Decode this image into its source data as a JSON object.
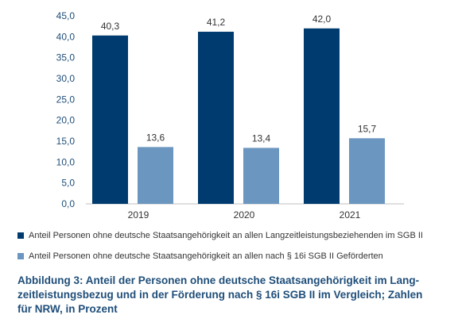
{
  "chart_data": {
    "type": "bar",
    "categories": [
      "2019",
      "2020",
      "2021"
    ],
    "series": [
      {
        "name": "Anteil Personen ohne deutsche Staatsangehörigkeit an allen Langzeitleistungsbeziehenden im SGB II",
        "values": [
          40.3,
          41.2,
          42.0
        ],
        "labels": [
          "40,3",
          "41,2",
          "42,0"
        ],
        "color": "#003b6f"
      },
      {
        "name": "Anteil Personen ohne deutsche Staatsangehörigkeit an allen nach § 16i SGB II Geförderten",
        "values": [
          13.6,
          13.4,
          15.7
        ],
        "labels": [
          "13,6",
          "13,4",
          "15,7"
        ],
        "color": "#6a96bf"
      }
    ],
    "ylim": [
      0,
      45
    ],
    "yticks": [
      "0,0",
      "5,0",
      "10,0",
      "15,0",
      "20,0",
      "25,0",
      "30,0",
      "35,0",
      "40,0",
      "45,0"
    ],
    "grid": false,
    "legend": "bottom"
  },
  "caption": "Abbildung 3: Anteil der Personen ohne deutsche Staatsangehörigkeit im Lang-zeitleistungsbezug und in der Förderung nach § 16i SGB II im Vergleich; Zahlen für NRW, in Prozent",
  "caption_lines": [
    "Abbildung 3: Anteil der Personen ohne deutsche Staatsangehörigkeit im Lang-",
    "zeitleistungsbezug und in der Förderung nach § 16i SGB II im Vergleich; Zahlen",
    "für NRW, in Prozent"
  ]
}
